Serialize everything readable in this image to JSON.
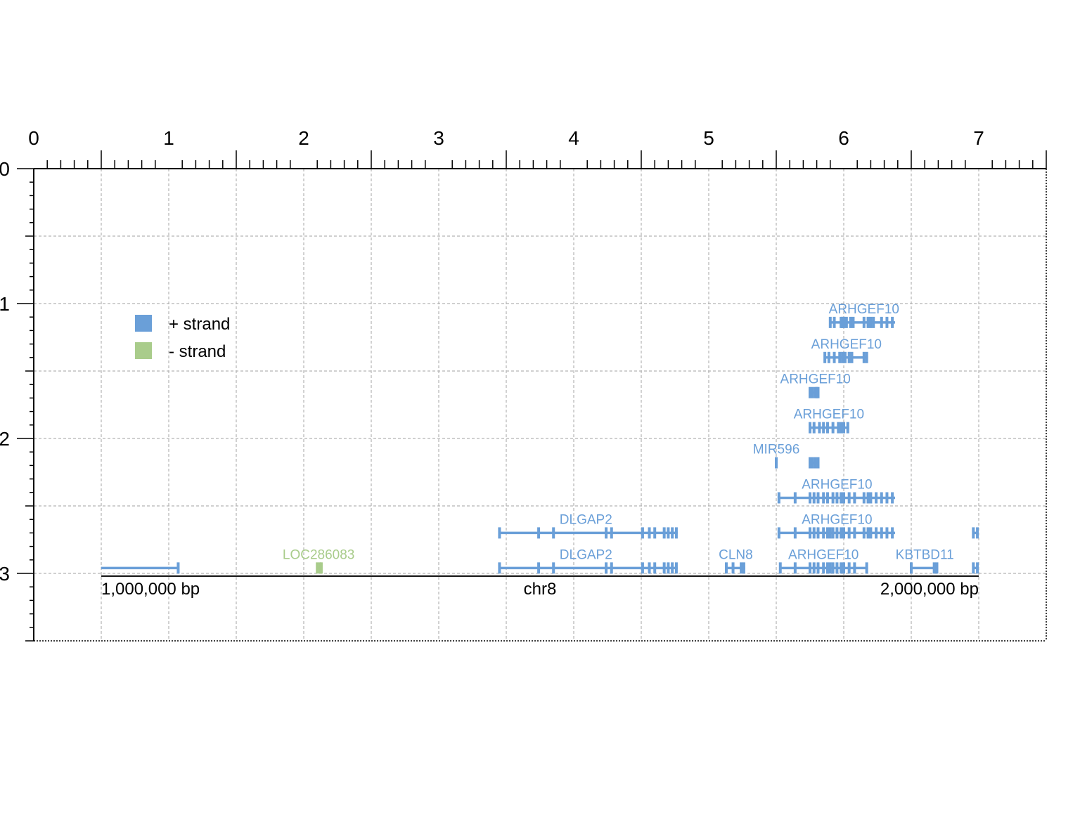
{
  "plot": {
    "x_ticks": [
      "0",
      "1",
      "2",
      "3",
      "4",
      "5",
      "6",
      "7"
    ],
    "y_ticks": [
      "0",
      "1",
      "2",
      "3"
    ],
    "grid": "dashed",
    "x_range": [
      0,
      7.5
    ],
    "y_range": [
      0,
      3.5
    ]
  },
  "legend": {
    "placement": "top-left",
    "items": [
      {
        "label": "+ strand",
        "color": "#6a9fd8"
      },
      {
        "label": "- strand",
        "color": "#a9cc8b"
      }
    ]
  },
  "ruler": {
    "left_label": "1,000,000 bp",
    "center_label": "chr8",
    "right_label": "2,000,000 bp"
  },
  "colors": {
    "plus": "#6a9fd8",
    "minus": "#a9cc8b",
    "axis": "#000000",
    "grid": "#b3b3b3"
  },
  "tracks": [
    {
      "label": "ARHGEF10",
      "strand": "+",
      "row": 1.14,
      "start": 5.9,
      "end": 6.38,
      "label_x": 6.15,
      "exons": [
        5.9,
        5.93,
        5.98,
        5.99,
        6.0,
        6.02,
        6.05,
        6.07,
        6.15,
        6.18,
        6.2,
        6.22,
        6.28,
        6.32,
        6.36
      ]
    },
    {
      "label": "ARHGEF10",
      "strand": "+",
      "row": 1.4,
      "start": 5.86,
      "end": 6.18,
      "label_x": 6.02,
      "exons": [
        5.86,
        5.89,
        5.93,
        5.97,
        5.99,
        6.01,
        6.04,
        6.06,
        6.15,
        6.17
      ]
    },
    {
      "label": "ARHGEF10",
      "strand": "+",
      "row": 1.66,
      "start": 5.75,
      "end": 5.82,
      "label_x": 5.79,
      "exons": [
        5.75,
        5.77,
        5.79,
        5.8,
        5.81
      ]
    },
    {
      "label": "ARHGEF10",
      "strand": "+",
      "row": 1.92,
      "start": 5.75,
      "end": 6.04,
      "label_x": 5.89,
      "exons": [
        5.75,
        5.78,
        5.82,
        5.85,
        5.88,
        5.92,
        5.96,
        5.98,
        6.0,
        6.03
      ]
    },
    {
      "label": "MIR596",
      "strand": "+",
      "row": 2.18,
      "start": 5.5,
      "end": 5.5,
      "label_x": 5.5,
      "exons": [
        5.5
      ]
    },
    {
      "label": "",
      "strand": "+",
      "row": 2.18,
      "start": 5.75,
      "end": 5.82,
      "label_x": 5.79,
      "exons": [
        5.75,
        5.77,
        5.79,
        5.81
      ]
    },
    {
      "label": "ARHGEF10",
      "strand": "+",
      "row": 2.44,
      "start": 5.52,
      "end": 6.38,
      "label_x": 5.95,
      "exons": [
        5.52,
        5.64,
        5.75,
        5.78,
        5.81,
        5.85,
        5.88,
        5.92,
        5.95,
        5.98,
        6.0,
        6.04,
        6.08,
        6.15,
        6.18,
        6.2,
        6.24,
        6.28,
        6.32,
        6.36
      ]
    },
    {
      "label": "DLGAP2",
      "strand": "+",
      "row": 2.7,
      "start": 3.45,
      "end": 4.77,
      "label_x": 4.09,
      "exons": [
        3.45,
        3.74,
        3.85,
        4.24,
        4.28,
        4.51,
        4.56,
        4.6,
        4.67,
        4.7,
        4.73,
        4.76
      ]
    },
    {
      "label": "ARHGEF10",
      "strand": "+",
      "row": 2.7,
      "start": 5.52,
      "end": 6.38,
      "label_x": 5.95,
      "exons": [
        5.52,
        5.64,
        5.75,
        5.78,
        5.81,
        5.85,
        5.88,
        5.9,
        5.92,
        5.95,
        5.98,
        6.0,
        6.04,
        6.08,
        6.15,
        6.18,
        6.2,
        6.24,
        6.28,
        6.32,
        6.36
      ]
    },
    {
      "label": "",
      "strand": "+",
      "row": 2.7,
      "start": 6.96,
      "end": 7.0,
      "label_x": 6.98,
      "exons": [
        6.96,
        6.99
      ]
    },
    {
      "label": "",
      "strand": "+",
      "row": 2.96,
      "start": 0.5,
      "end": 1.07,
      "label_x": 0.78,
      "exons": [
        1.07
      ]
    },
    {
      "label": "LOC286083",
      "strand": "-",
      "row": 2.96,
      "start": 2.1,
      "end": 2.13,
      "label_x": 2.11,
      "exons": [
        2.1,
        2.12,
        2.13
      ]
    },
    {
      "label": "DLGAP2",
      "strand": "+",
      "row": 2.96,
      "start": 3.45,
      "end": 4.77,
      "label_x": 4.09,
      "exons": [
        3.45,
        3.74,
        3.85,
        4.24,
        4.28,
        4.51,
        4.56,
        4.6,
        4.67,
        4.7,
        4.73,
        4.76
      ]
    },
    {
      "label": "CLN8",
      "strand": "+",
      "row": 2.96,
      "start": 5.13,
      "end": 5.27,
      "label_x": 5.2,
      "exons": [
        5.13,
        5.18,
        5.24,
        5.26
      ]
    },
    {
      "label": "ARHGEF10",
      "strand": "+",
      "row": 2.96,
      "start": 5.53,
      "end": 6.18,
      "label_x": 5.85,
      "exons": [
        5.53,
        5.64,
        5.75,
        5.78,
        5.81,
        5.85,
        5.88,
        5.9,
        5.92,
        5.95,
        5.98,
        6.0,
        6.04,
        6.08,
        6.17
      ]
    },
    {
      "label": "KBTBD11",
      "strand": "+",
      "row": 2.96,
      "start": 6.5,
      "end": 6.7,
      "label_x": 6.6,
      "exons": [
        6.5,
        6.67,
        6.69
      ]
    },
    {
      "label": "",
      "strand": "+",
      "row": 2.96,
      "start": 6.96,
      "end": 7.0,
      "label_x": 6.98,
      "exons": [
        6.96,
        6.99
      ]
    }
  ]
}
